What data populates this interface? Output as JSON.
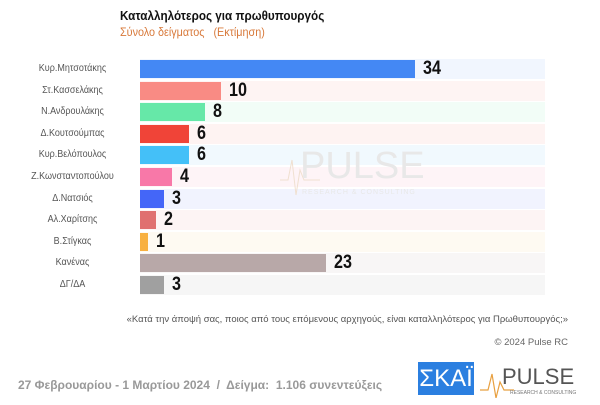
{
  "chart_data": {
    "type": "bar",
    "orientation": "horizontal",
    "title": "Καταλληλότερος για πρωθυπουργός",
    "subtitle": "Σύνολο δείγματος   (Εκτίμηση)",
    "categories": [
      "Κυρ.Μητσοτάκης",
      "Στ.Κασσελάκης",
      "Ν.Ανδρουλάκης",
      "Δ.Κουτσούμπας",
      "Κυρ.Βελόπουλος",
      "Ζ.Κωνσταντοπούλου",
      "Δ.Νατσιός",
      "Αλ.Χαρίτσης",
      "Β.Στίγκας",
      "Κανένας",
      "ΔΓ/ΔΑ"
    ],
    "values": [
      34,
      10,
      8,
      6,
      6,
      4,
      3,
      2,
      1,
      23,
      3
    ],
    "colors": [
      "#4488f4",
      "#f98b84",
      "#66e8a8",
      "#f04438",
      "#44c0f8",
      "#f878a8",
      "#4466f8",
      "#e07070",
      "#f8b040",
      "#b8a8a8",
      "#a0a0a0"
    ],
    "row_tints": [
      "#f1f6fe",
      "#fef4f3",
      "#f2fdf7",
      "#fef3f2",
      "#f1f9fe",
      "#fef4f7",
      "#f1f3fe",
      "#fdf4f4",
      "#fefaf2",
      "#f8f6f6",
      "#f6f6f6"
    ],
    "xlim": [
      0,
      50
    ],
    "grid": false
  },
  "watermark": {
    "brand": "PULSE",
    "tagline": "RESEARCH & CONSULTING"
  },
  "question": "«Κατά την άποψή σας, ποιος από τους επόμενους αρχηγούς, είναι καταλληλότερος για Πρωθυπουργός;»",
  "copyright": "© 2024 Pulse RC",
  "footer": "27 Φεβρουαρίου - 1 Μαρτίου 2024  /  Δείγμα:  1.106 συνεντεύξεις",
  "logos": {
    "skai": "ΣΚΑΪ",
    "pulse": "PULSE",
    "pulse_tagline": "RESEARCH & CONSULTING"
  }
}
